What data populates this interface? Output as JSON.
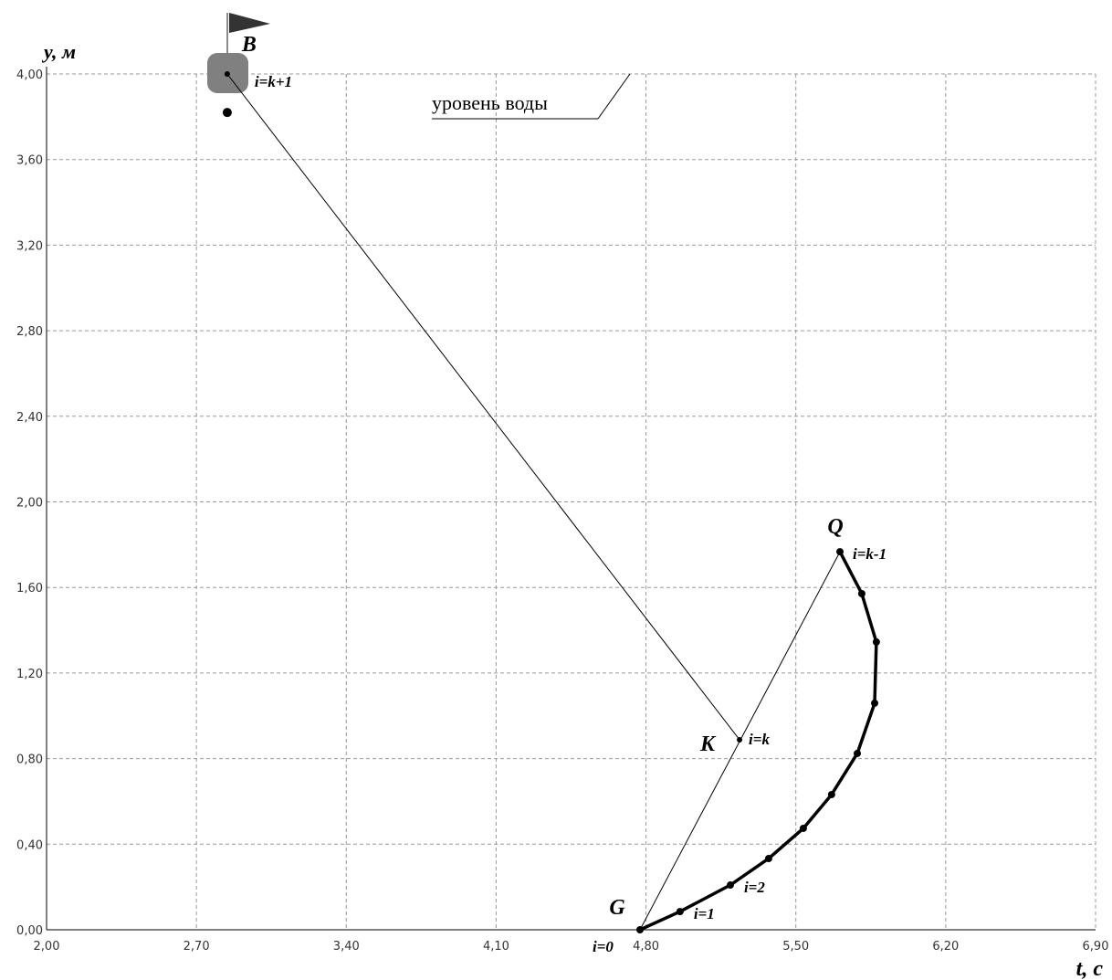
{
  "chart_data": {
    "type": "line",
    "x_label": "t, с",
    "y_label": "y, м",
    "xlim": [
      2.0,
      6.9
    ],
    "ylim": [
      0,
      4.0
    ],
    "xticks": [
      {
        "value": 2.0,
        "label": "2,00"
      },
      {
        "value": 2.7,
        "label": "2,70"
      },
      {
        "value": 3.4,
        "label": "3,40"
      },
      {
        "value": 4.1,
        "label": "4,10"
      },
      {
        "value": 4.8,
        "label": "4,80"
      },
      {
        "value": 5.5,
        "label": "5,50"
      },
      {
        "value": 6.2,
        "label": "6,20"
      },
      {
        "value": 6.9,
        "label": "6,90"
      }
    ],
    "yticks": [
      {
        "value": 0,
        "label": "0,00"
      },
      {
        "value": 0.4,
        "label": "0,40"
      },
      {
        "value": 0.8,
        "label": "0,80"
      },
      {
        "value": 1.2,
        "label": "1,20"
      },
      {
        "value": 1.6,
        "label": "1,60"
      },
      {
        "value": 2.0,
        "label": "2,00"
      },
      {
        "value": 2.4,
        "label": "2,40"
      },
      {
        "value": 2.8,
        "label": "2,80"
      },
      {
        "value": 3.2,
        "label": "3,20"
      },
      {
        "value": 3.6,
        "label": "3,60"
      },
      {
        "value": 4.0,
        "label": "4,00"
      }
    ],
    "grid": true,
    "series": [
      {
        "color": "#000000",
        "width": 3.5,
        "x": [
          4.772,
          4.959,
          5.194,
          5.373,
          5.535,
          5.667,
          5.787,
          5.868,
          5.876,
          5.808,
          5.706
        ],
        "values": [
          0,
          0.085,
          0.209,
          0.333,
          0.474,
          0.632,
          0.824,
          1.059,
          1.345,
          1.571,
          1.767
        ],
        "point_labels": [
          null,
          "i=1",
          "i=2",
          null,
          null,
          null,
          null,
          null,
          null,
          null,
          null
        ]
      },
      {
        "color": "#000000",
        "width": 1,
        "x": [
          2.844,
          5.237
        ],
        "values": [
          4.0,
          0.888
        ]
      },
      {
        "color": "#000000",
        "width": 1,
        "x": [
          4.772,
          5.706
        ],
        "values": [
          0,
          1.767
        ]
      }
    ],
    "points": [
      {
        "name": "B",
        "label": "i=k+1",
        "x": 2.844,
        "y": 4.0
      },
      {
        "name": "K",
        "label": "i=k",
        "x": 5.237,
        "y": 0.888
      },
      {
        "name": "Q",
        "label": "i=k-1",
        "x": 5.706,
        "y": 1.767
      },
      {
        "name": "G",
        "label": "i=0",
        "x": 4.772,
        "y": 0
      }
    ],
    "extra_points": {
      "x": [
        2.844
      ],
      "values": [
        3.82
      ]
    },
    "annotation": "уровень воды"
  }
}
